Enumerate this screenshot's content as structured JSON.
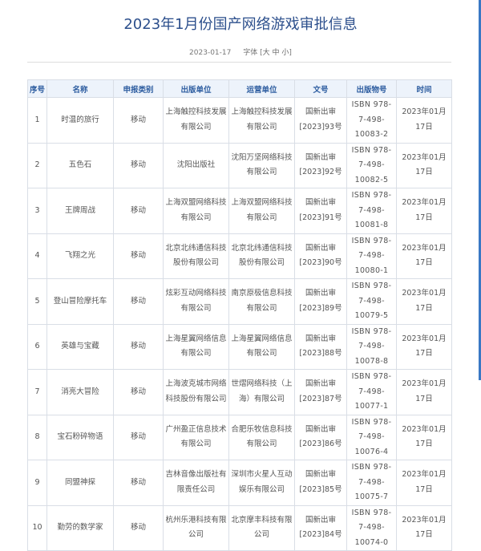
{
  "title": "2023年1月份国产网络游戏审批信息",
  "date": "2023-01-17",
  "font_label": "字体",
  "font_sizes": [
    "大",
    "中",
    "小"
  ],
  "colors": {
    "title": "#2c4f8c",
    "header_bg": "#edf3fb",
    "header_text": "#2d5da0"
  },
  "table": {
    "headers": [
      "序号",
      "名称",
      "申报类别",
      "出版单位",
      "运营单位",
      "文号",
      "出版物号",
      "时间"
    ],
    "rows": [
      [
        "1",
        "时温的旅行",
        "移动",
        "上海触控科技发展有限公司",
        "上海触控科技发展有限公司",
        "国新出审[2023]93号",
        "ISBN 978-7-498-10083-2",
        "2023年01月17日"
      ],
      [
        "2",
        "五色石",
        "移动",
        "沈阳出版社",
        "沈阳万坚网络科技有限公司",
        "国新出审[2023]92号",
        "ISBN 978-7-498-10082-5",
        "2023年01月17日"
      ],
      [
        "3",
        "王牌周战",
        "移动",
        "上海双盟网络科技有限公司",
        "上海双盟网络科技有限公司",
        "国新出审[2023]91号",
        "ISBN 978-7-498-10081-8",
        "2023年01月17日"
      ],
      [
        "4",
        "飞翔之光",
        "移动",
        "北京北纬通信科技股份有限公司",
        "北京北纬通信科技股份有限公司",
        "国新出审[2023]90号",
        "ISBN 978-7-498-10080-1",
        "2023年01月17日"
      ],
      [
        "5",
        "登山冒险摩托车",
        "移动",
        "炫彩互动网络科技有限公司",
        "南京原极信息科技有限公司",
        "国新出审[2023]89号",
        "ISBN 978-7-498-10079-5",
        "2023年01月17日"
      ],
      [
        "6",
        "英雄与宝藏",
        "移动",
        "上海星翼网络信息有限公司",
        "上海星翼网络信息有限公司",
        "国新出审[2023]88号",
        "ISBN 978-7-498-10078-8",
        "2023年01月17日"
      ],
      [
        "7",
        "消亮大冒险",
        "移动",
        "上海波克城市网络科技股份有限公司",
        "世熠网络科技（上海）有限公司",
        "国新出审[2023]87号",
        "ISBN 978-7-498-10077-1",
        "2023年01月17日"
      ],
      [
        "8",
        "宝石粉碎物语",
        "移动",
        "广州盈正信息技术有限公司",
        "合肥乐牧信息科技有限公司",
        "国新出审[2023]86号",
        "ISBN 978-7-498-10076-4",
        "2023年01月17日"
      ],
      [
        "9",
        "同盟神探",
        "移动",
        "吉林音像出版社有限责任公司",
        "深圳市火星人互动娱乐有限公司",
        "国新出审[2023]85号",
        "ISBN 978-7-498-10075-7",
        "2023年01月17日"
      ],
      [
        "10",
        "勤劳的数学家",
        "移动",
        "杭州乐港科技有限公司",
        "北京摩丰科技有限公司",
        "国新出审[2023]84号",
        "ISBN 978-7-498-10074-0",
        "2023年01月17日"
      ]
    ]
  }
}
